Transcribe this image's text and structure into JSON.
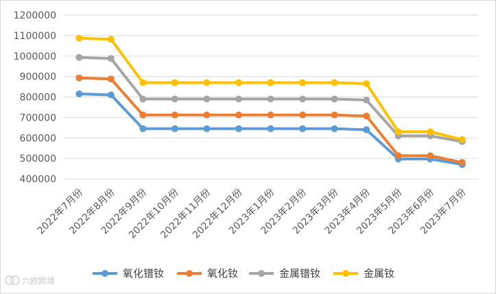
{
  "watermark": {
    "text": "六欧跨境"
  },
  "chart_data": {
    "type": "line",
    "categories": [
      "2022年7月份",
      "2022年8月份",
      "2022年9月份",
      "2022年10月份",
      "2022年11月份",
      "2022年12月份",
      "2023年1月份",
      "2023年2月份",
      "2023年3月份",
      "2023年4月份",
      "2023年5月份",
      "2023年6月份",
      "2023年7月份"
    ],
    "ylim": [
      400000,
      1200000
    ],
    "yticks": [
      400000,
      500000,
      600000,
      700000,
      800000,
      900000,
      1000000,
      1100000,
      1200000
    ],
    "grid": true,
    "legend_position": "bottom",
    "series": [
      {
        "name": "氧化镨钕",
        "color": "#5B9BD5",
        "values": [
          815000,
          810000,
          645000,
          645000,
          645000,
          645000,
          645000,
          645000,
          645000,
          640000,
          497000,
          497000,
          470000
        ]
      },
      {
        "name": "氧化钕",
        "color": "#ED7D31",
        "values": [
          893000,
          888000,
          712000,
          712000,
          712000,
          712000,
          712000,
          712000,
          712000,
          707000,
          513000,
          513000,
          480000
        ]
      },
      {
        "name": "金属镨钕",
        "color": "#A5A5A5",
        "values": [
          993000,
          988000,
          790000,
          790000,
          790000,
          790000,
          790000,
          790000,
          790000,
          785000,
          610000,
          610000,
          582000
        ]
      },
      {
        "name": "金属钕",
        "color": "#FFC000",
        "values": [
          1087000,
          1082000,
          870000,
          870000,
          870000,
          870000,
          870000,
          870000,
          870000,
          865000,
          630000,
          630000,
          592000
        ]
      }
    ]
  }
}
